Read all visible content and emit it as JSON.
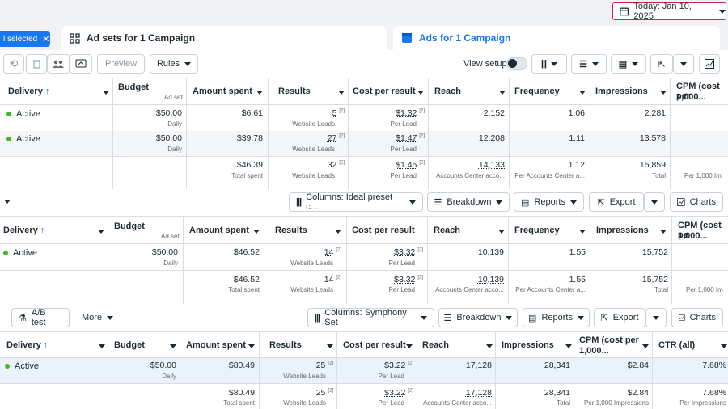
{
  "header": {
    "date_label": "Today: Jan 10, 2025"
  },
  "tabs": {
    "selected_pill": "l selected",
    "adsets": "Ad sets for 1 Campaign",
    "ads": "Ads for 1 Campaign"
  },
  "toolbar1": {
    "preview": "Preview",
    "rules": "Rules",
    "view_setup": "View setup"
  },
  "toolbar2": {
    "columns": "Columns: Ideal preset c...",
    "breakdown": "Breakdown",
    "reports": "Reports",
    "export": "Export",
    "charts": "Charts"
  },
  "toolbar3": {
    "ab_test": "A/B test",
    "more": "More",
    "columns": "Columns: Symphony Set",
    "breakdown": "Breakdown",
    "reports": "Reports",
    "export": "Export",
    "charts": "Charts"
  },
  "table1": {
    "headers": {
      "delivery": "Delivery",
      "budget": "Budget",
      "budget_sub": "Ad set",
      "amount": "Amount spent",
      "results": "Results",
      "cpr": "Cost per result",
      "reach": "Reach",
      "frequency": "Frequency",
      "impressions": "Impressions",
      "cpm": "CPM (cost per",
      "cpm2": "1,000..."
    },
    "rows": [
      {
        "delivery": "Active",
        "budget": "$50.00",
        "budget_sub": "Daily",
        "amount": "$6.61",
        "results": "5",
        "results_sub": "Website Leads",
        "cpr": "$1.32",
        "cpr_sub": "Per Lead",
        "reach": "2,152",
        "frequency": "1.06",
        "impressions": "2,281"
      },
      {
        "delivery": "Active",
        "budget": "$50.00",
        "budget_sub": "Daily",
        "amount": "$39.78",
        "results": "27",
        "results_sub": "Website Leads",
        "cpr": "$1.47",
        "cpr_sub": "Per Lead",
        "reach": "12,208",
        "frequency": "1.11",
        "impressions": "13,578"
      }
    ],
    "total": {
      "amount": "$46.39",
      "amount_sub": "Total spent",
      "results": "32",
      "results_sub": "Website Leads",
      "cpr": "$1.45",
      "cpr_sub": "Per Lead",
      "reach": "14,133",
      "reach_sub": "Accounts Center acco...",
      "frequency": "1.12",
      "frequency_sub": "Per Accounts Center a...",
      "impressions": "15,859",
      "impressions_sub": "Total",
      "cpm_sub": "Per 1,000 Im"
    }
  },
  "table2": {
    "headers": {
      "delivery": "Delivery",
      "budget": "Budget",
      "budget_sub": "Ad set",
      "amount": "Amount spent",
      "results": "Results",
      "cpr": "Cost per result",
      "reach": "Reach",
      "frequency": "Frequency",
      "impressions": "Impressions",
      "cpm": "CPM (cost pe",
      "cpm2": "1,000..."
    },
    "rows": [
      {
        "delivery": "Active",
        "budget": "$50.00",
        "budget_sub": "Daily",
        "amount": "$46.52",
        "results": "14",
        "results_sub": "Website Leads",
        "cpr": "$3.32",
        "cpr_sub": "Per Lead",
        "reach": "10,139",
        "frequency": "1.55",
        "impressions": "15,752"
      }
    ],
    "total": {
      "amount": "$46.52",
      "amount_sub": "Total spent",
      "results": "14",
      "results_sub": "Website Leads",
      "cpr": "$3.32",
      "cpr_sub": "Per Lead",
      "reach": "10,139",
      "reach_sub": "Accounts Center acco...",
      "frequency": "1.55",
      "frequency_sub": "Per Accounts Center a...",
      "impressions": "15,752",
      "impressions_sub": "Total",
      "cpm_sub": "Per 1,000 Im"
    }
  },
  "table3": {
    "headers": {
      "delivery": "Delivery",
      "budget": "Budget",
      "amount": "Amount spent",
      "results": "Results",
      "cpr": "Cost per result",
      "reach": "Reach",
      "impressions": "Impressions",
      "cpm": "CPM (cost per",
      "cpm2": "1,000...",
      "ctr": "CTR (all)"
    },
    "rows": [
      {
        "delivery": "Active",
        "budget": "$50.00",
        "budget_sub": "Daily",
        "amount": "$80.49",
        "results": "25",
        "results_sub": "Website Leads",
        "cpr": "$3.22",
        "cpr_sub": "Per Lead",
        "reach": "17,128",
        "impressions": "28,341",
        "cpm": "$2.84",
        "ctr": "7.68%"
      }
    ],
    "total": {
      "amount": "$80.49",
      "amount_sub": "Total spent",
      "results": "25",
      "results_sub": "Website Leads",
      "cpr": "$3.22",
      "cpr_sub": "Per Lead",
      "reach": "17,128",
      "reach_sub": "Accounts Center acco...",
      "impressions": "28,341",
      "impressions_sub": "Total",
      "cpm": "$2.84",
      "cpm_sub": "Per 1,000 Impressions",
      "ctr": "7.68%",
      "ctr_sub": "Per Impressions"
    }
  },
  "footnote_marker": "[2]"
}
